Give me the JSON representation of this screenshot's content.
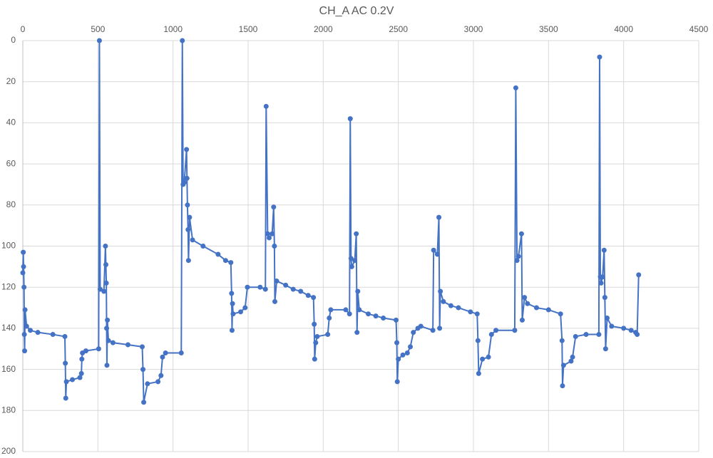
{
  "chart_data": {
    "type": "line",
    "title": "CH_A AC 0.2V",
    "x": [
      0,
      3,
      5,
      8,
      10,
      12,
      15,
      25,
      50,
      100,
      200,
      280,
      283,
      286,
      290,
      330,
      380,
      390,
      393,
      397,
      420,
      505,
      510,
      515,
      540,
      550,
      553,
      556,
      558,
      560,
      563,
      570,
      600,
      700,
      795,
      800,
      805,
      830,
      900,
      920,
      930,
      950,
      1055,
      1062,
      1067,
      1075,
      1090,
      1093,
      1096,
      1100,
      1103,
      1110,
      1130,
      1200,
      1300,
      1350,
      1385,
      1390,
      1393,
      1396,
      1400,
      1450,
      1480,
      1495,
      1580,
      1615,
      1620,
      1630,
      1640,
      1660,
      1670,
      1675,
      1678,
      1690,
      1750,
      1800,
      1850,
      1900,
      1935,
      1940,
      1943,
      1950,
      1960,
      2030,
      2040,
      2050,
      2150,
      2175,
      2180,
      2185,
      2190,
      2210,
      2220,
      2225,
      2230,
      2240,
      2300,
      2350,
      2400,
      2485,
      2490,
      2493,
      2500,
      2530,
      2560,
      2580,
      2600,
      2630,
      2650,
      2730,
      2735,
      2760,
      2770,
      2775,
      2780,
      2800,
      2850,
      2900,
      2980,
      3025,
      3030,
      3035,
      3060,
      3100,
      3120,
      3150,
      3275,
      3282,
      3290,
      3300,
      3320,
      3325,
      3340,
      3360,
      3420,
      3500,
      3580,
      3590,
      3593,
      3600,
      3650,
      3660,
      3680,
      3750,
      3835,
      3840,
      3845,
      3850,
      3860,
      3870,
      3875,
      3880,
      3890,
      3920,
      4000,
      4050,
      4080,
      4090,
      4100
    ],
    "series": [
      {
        "name": "CH_A",
        "color": "#4472c4",
        "values": [
          113,
          103,
          110,
          120,
          143,
          151,
          131,
          139,
          141,
          142,
          143,
          144,
          157,
          174,
          166,
          165,
          164,
          162,
          155,
          152,
          151,
          150,
          0,
          121,
          122,
          100,
          109,
          118,
          140,
          158,
          136,
          146,
          147,
          148,
          149,
          160,
          176,
          167,
          166,
          163,
          154,
          152,
          152,
          0,
          70,
          69,
          53,
          67,
          80,
          92,
          107,
          86,
          97,
          100,
          104,
          107,
          108,
          123,
          141,
          128,
          133,
          132,
          130,
          120,
          120,
          121,
          32,
          94,
          96,
          94,
          81,
          100,
          127,
          117,
          119,
          121,
          122,
          124,
          125,
          138,
          155,
          147,
          144,
          143,
          135,
          131,
          131,
          133,
          38,
          106,
          110,
          107,
          94,
          142,
          122,
          131,
          133,
          134,
          135,
          136,
          147,
          166,
          155,
          153,
          152,
          149,
          142,
          140,
          139,
          141,
          102,
          104,
          86,
          140,
          122,
          127,
          129,
          130,
          132,
          133,
          146,
          162,
          155,
          154,
          143,
          141,
          141,
          23,
          107,
          105,
          94,
          136,
          125,
          128,
          130,
          131,
          133,
          146,
          168,
          158,
          156,
          154,
          144,
          143,
          143,
          8,
          115,
          118,
          115,
          102,
          125,
          150,
          135,
          139,
          140,
          141,
          142,
          143,
          114
        ]
      }
    ],
    "xlim": [
      0,
      4500
    ],
    "xticks": [
      0,
      500,
      1000,
      1500,
      2000,
      2500,
      3000,
      3500,
      4000,
      4500
    ],
    "ylim": [
      0,
      200
    ],
    "yticks": [
      0,
      20,
      40,
      60,
      80,
      100,
      120,
      140,
      160,
      180,
      200
    ],
    "y_inverted": true,
    "x_axis_position": "top",
    "grid": true
  }
}
